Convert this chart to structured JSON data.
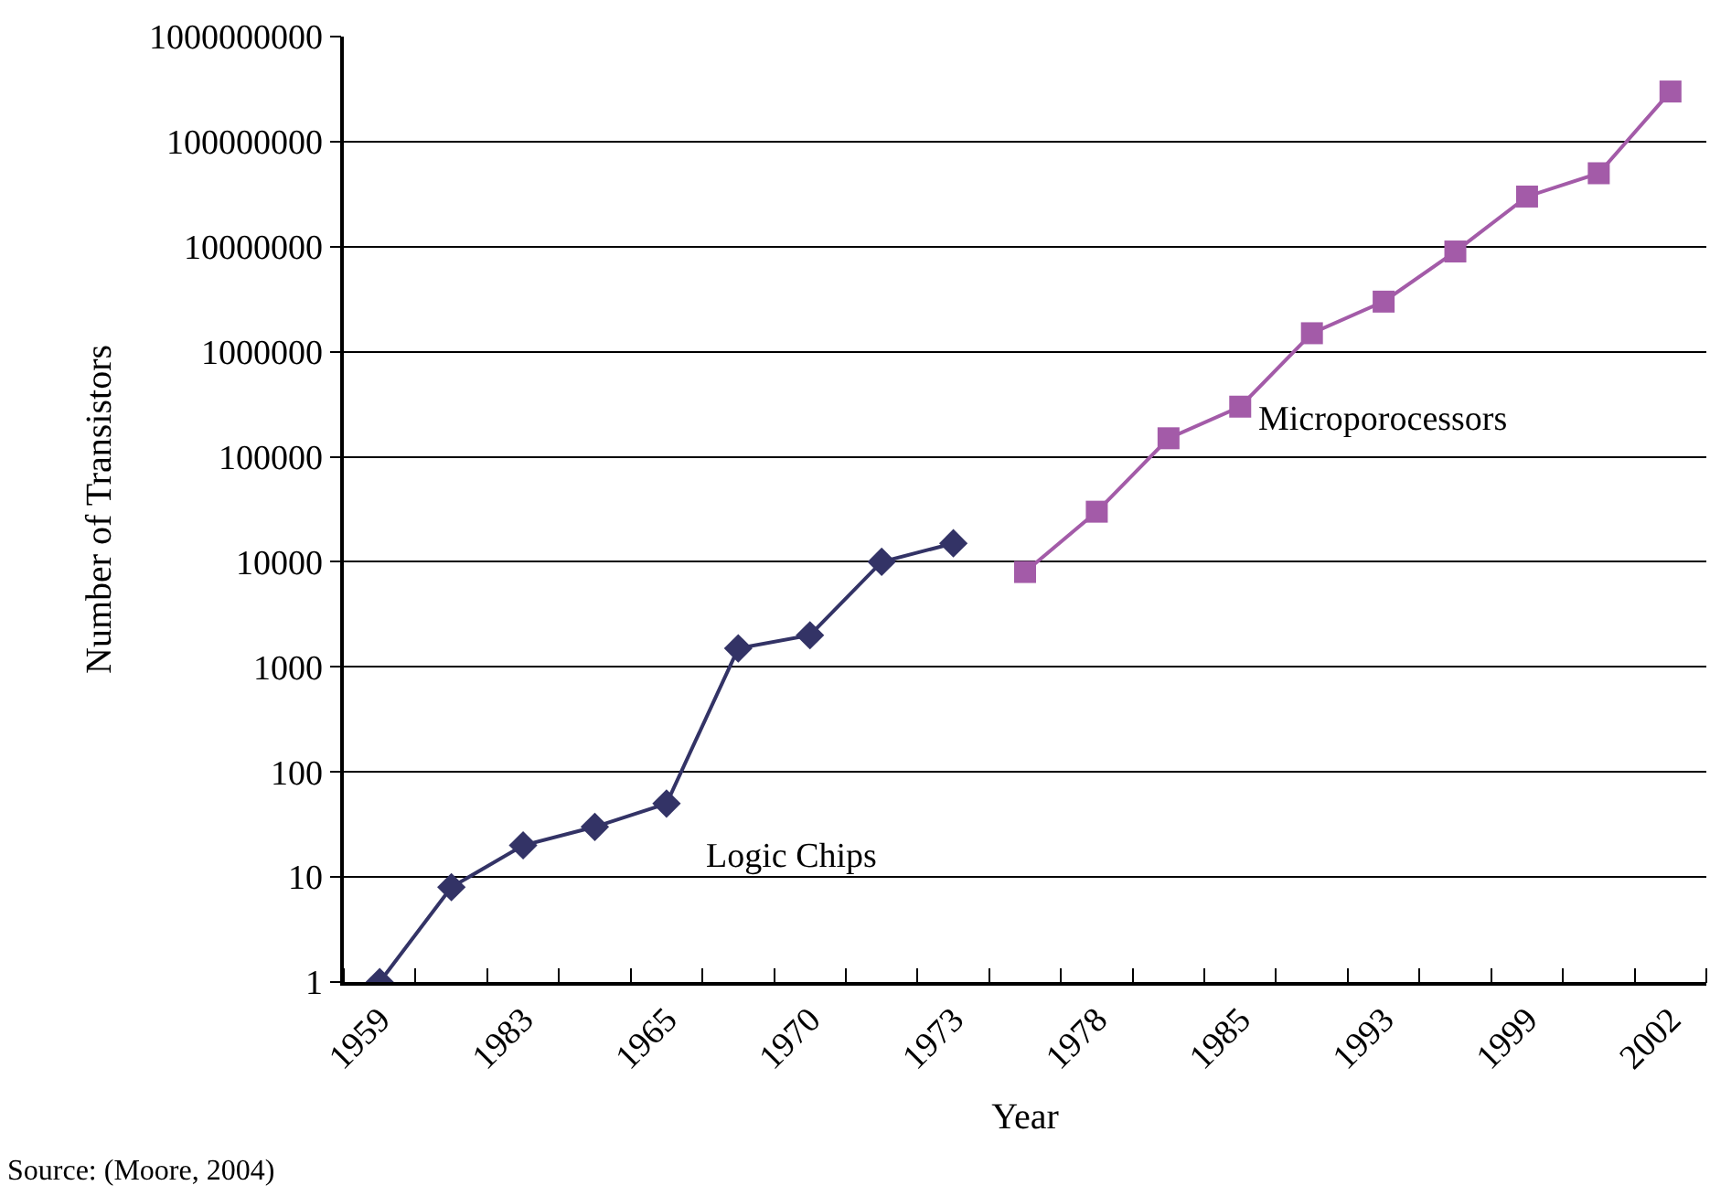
{
  "chart_data": {
    "type": "line",
    "xlabel": "Year",
    "ylabel": "Number of Transistors",
    "categories": [
      "1959",
      null,
      "1983",
      null,
      "1965",
      null,
      "1970",
      null,
      "1973",
      null,
      "1978",
      null,
      "1985",
      null,
      "1993",
      null,
      "1999",
      null,
      "2002"
    ],
    "series": [
      {
        "name": "Logic Chips",
        "color": "#333366",
        "marker": "diamond",
        "values": [
          1,
          8,
          20,
          30,
          50,
          1500,
          2000,
          10000,
          15000,
          null,
          null,
          null,
          null,
          null,
          null,
          null,
          null,
          null,
          null
        ]
      },
      {
        "name": "Microporocessors",
        "color": "#a35ba8",
        "marker": "square",
        "values": [
          null,
          null,
          null,
          null,
          null,
          null,
          null,
          null,
          null,
          8000,
          30000,
          150000,
          300000,
          1500000,
          3000000,
          9000000,
          30000000,
          50000000,
          300000000
        ]
      }
    ],
    "log": "y",
    "ylim": [
      1,
      1000000000
    ],
    "yticks": [
      1,
      10,
      100,
      1000,
      10000,
      100000,
      1000000,
      10000000,
      100000000,
      1000000000
    ],
    "grid": "y",
    "legend": false,
    "line_style": "solid",
    "annotations": [
      "Source: (Moore, 2004)"
    ]
  }
}
